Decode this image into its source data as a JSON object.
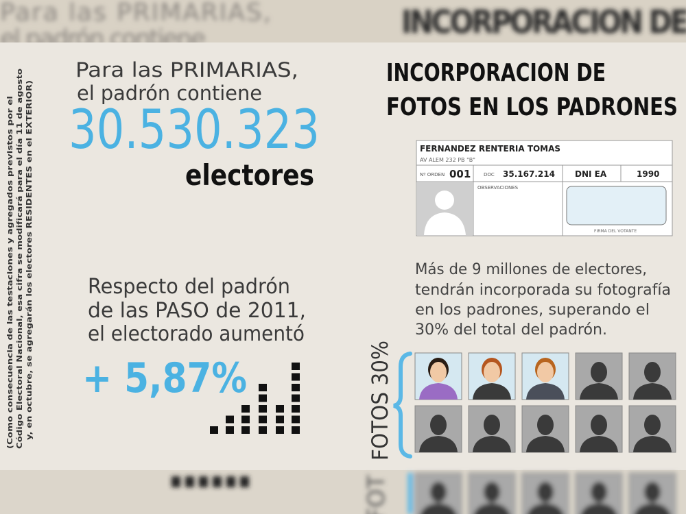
{
  "background": {
    "top_left_lines": [
      "Para las PRIMARIAS,",
      "el padrón contiene"
    ],
    "top_right_text": "INCORPORACION DE",
    "bottom_text": "FOT"
  },
  "note": {
    "lines": [
      "(Como consecuencia de las testaciones y agregados previstos por el",
      "Código Electoral Nacional, esa cifra se modificará para el día 11 de agosto",
      "y, en octubre, se agregarán los electores RESIDENTES en el EXTERIOR)"
    ]
  },
  "primarias": {
    "lines": [
      "Para las PRIMARIAS,",
      "el padrón contiene"
    ],
    "total": "30.530.323",
    "unit": "electores"
  },
  "growth": {
    "lines": [
      "Respecto del padrón",
      "de las PASO de 2011,",
      "el electorado aumentó"
    ],
    "change": "+ 5,87%"
  },
  "photos": {
    "title": [
      "INCORPORACION DE",
      "FOTOS EN LOS PADRONES"
    ],
    "card": {
      "name": "FERNANDEZ RENTERIA TOMAS",
      "address": "AV ALEM 232 PB \"B\"",
      "order_label": "Nº ORDEN",
      "order": "001",
      "doc_label": "DOC",
      "doc": "35.167.214",
      "doc_type": "DNI EA",
      "class": "1990",
      "observations_label": "OBSERVACIONES",
      "signature_label": "FIRMA DEL VOTANTE"
    },
    "description": [
      "Más de 9 millones de electores,",
      "tendrán incorporada su fotografía",
      "en los padrones, superando el",
      "30% del total del padrón."
    ],
    "label": "FOTOS 30%"
  }
}
